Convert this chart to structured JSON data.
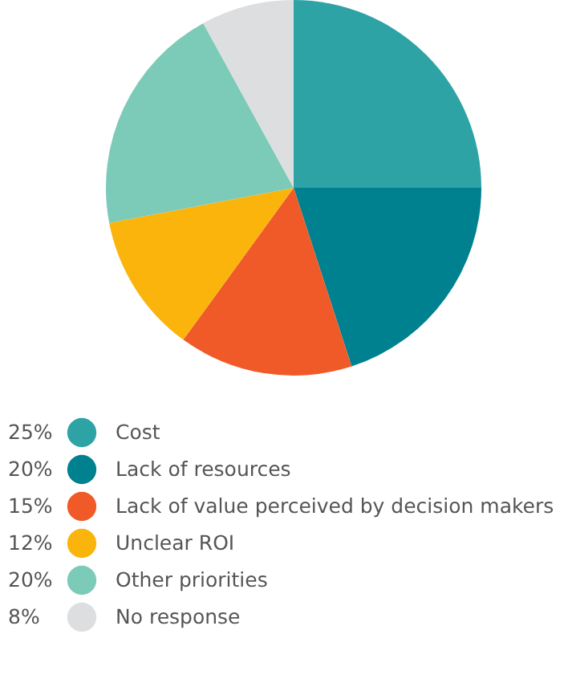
{
  "chart_data": {
    "type": "pie",
    "categories": [
      "Cost",
      "Lack of resources",
      "Lack of value perceived by decision makers",
      "Unclear ROI",
      "Other priorities",
      "No response"
    ],
    "values": [
      25,
      20,
      15,
      12,
      20,
      8
    ],
    "colors": [
      "#2ea3a6",
      "#00818f",
      "#f05a28",
      "#fbb40c",
      "#7ccab8",
      "#dcdee0"
    ],
    "value_labels": [
      "25%",
      "20%",
      "15%",
      "12%",
      "20%",
      "8%"
    ],
    "legend": "bottom"
  }
}
